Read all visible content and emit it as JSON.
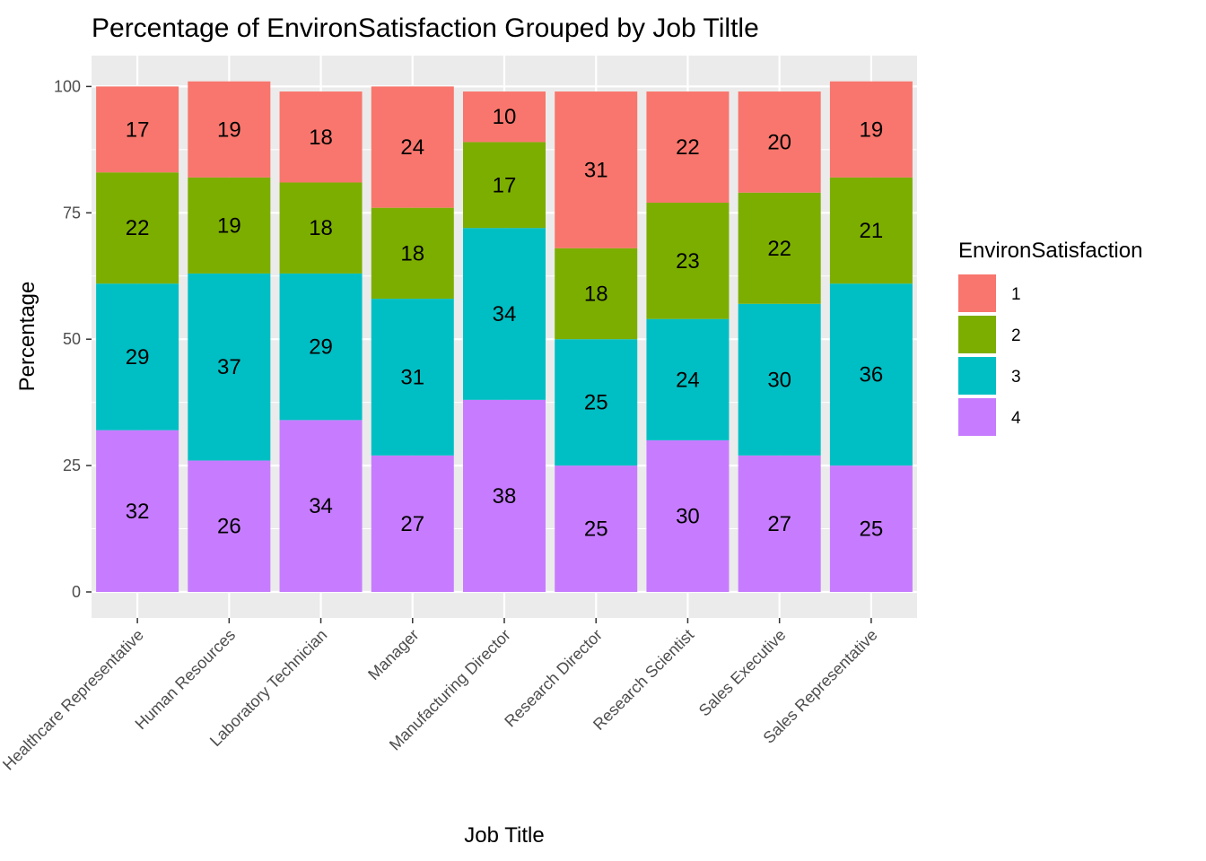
{
  "chart_data": {
    "type": "bar",
    "stacked": true,
    "title": "Percentage of EnvironSatisfaction Grouped by Job Tiltle",
    "xlabel": "Job Title",
    "ylabel": "Percentage",
    "ylim": [
      0,
      105
    ],
    "yticks": [
      0,
      25,
      50,
      75,
      100
    ],
    "grid": true,
    "legend": {
      "title": "EnvironSatisfaction",
      "position": "right"
    },
    "categories": [
      "Healthcare Representative",
      "Human Resources",
      "Laboratory Technician",
      "Manager",
      "Manufacturing Director",
      "Research Director",
      "Research Scientist",
      "Sales Executive",
      "Sales Representative"
    ],
    "series": [
      {
        "name": "1",
        "color": "#F8766D",
        "values": [
          17,
          19,
          18,
          24,
          10,
          31,
          22,
          20,
          19
        ]
      },
      {
        "name": "2",
        "color": "#7CAE00",
        "values": [
          22,
          19,
          18,
          18,
          17,
          18,
          23,
          22,
          21
        ]
      },
      {
        "name": "3",
        "color": "#00BFC4",
        "values": [
          29,
          37,
          29,
          31,
          34,
          25,
          24,
          30,
          36
        ]
      },
      {
        "name": "4",
        "color": "#C77CFF",
        "values": [
          32,
          26,
          34,
          27,
          38,
          25,
          30,
          27,
          25
        ]
      }
    ]
  }
}
